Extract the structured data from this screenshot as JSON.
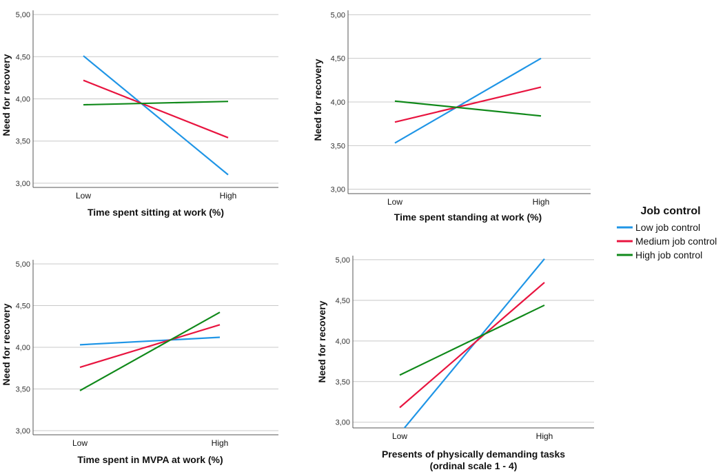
{
  "legend": {
    "title": "Job control",
    "entries": [
      {
        "name": "Low job control",
        "color": "#1f95e6"
      },
      {
        "name": "Medium job control",
        "color": "#e8143f"
      },
      {
        "name": "High job control",
        "color": "#10891a"
      }
    ]
  },
  "chart_data": [
    {
      "type": "line",
      "title": "",
      "xlabel": "Time spent sitting at work (%)",
      "ylabel": "Need for recovery",
      "categories": [
        "Low",
        "High"
      ],
      "ylim": [
        2.95,
        5.05
      ],
      "yticks": [
        3.0,
        3.5,
        4.0,
        4.5,
        5.0
      ],
      "ytick_labels": [
        "3,00",
        "3,50",
        "4,00",
        "4,50",
        "5,00"
      ],
      "series": [
        {
          "name": "Low job control",
          "values": [
            4.51,
            3.1
          ]
        },
        {
          "name": "Medium job control",
          "values": [
            4.22,
            3.54
          ]
        },
        {
          "name": "High job control",
          "values": [
            3.93,
            3.97
          ]
        }
      ]
    },
    {
      "type": "line",
      "title": "",
      "xlabel": "Time spent standing at work (%)",
      "ylabel": "Need for recovery",
      "categories": [
        "Low",
        "High"
      ],
      "ylim": [
        2.95,
        5.05
      ],
      "yticks": [
        3.0,
        3.5,
        4.0,
        4.5,
        5.0
      ],
      "ytick_labels": [
        "3,00",
        "3,50",
        "4,00",
        "4,50",
        "5,00"
      ],
      "series": [
        {
          "name": "Low job control",
          "values": [
            3.53,
            4.5
          ]
        },
        {
          "name": "Medium job control",
          "values": [
            3.77,
            4.17
          ]
        },
        {
          "name": "High job control",
          "values": [
            4.01,
            3.84
          ]
        }
      ]
    },
    {
      "type": "line",
      "title": "",
      "xlabel": "Time spent in MVPA at work (%)",
      "ylabel": "Need for recovery",
      "categories": [
        "Low",
        "High"
      ],
      "ylim": [
        2.95,
        5.05
      ],
      "yticks": [
        3.0,
        3.5,
        4.0,
        4.5,
        5.0
      ],
      "ytick_labels": [
        "3,00",
        "3,50",
        "4,00",
        "4,50",
        "5,00"
      ],
      "series": [
        {
          "name": "Low job control",
          "values": [
            4.03,
            4.12
          ]
        },
        {
          "name": "Medium job control",
          "values": [
            3.76,
            4.27
          ]
        },
        {
          "name": "High job control",
          "values": [
            3.48,
            4.42
          ]
        }
      ]
    },
    {
      "type": "line",
      "title": "",
      "xlabel": "Presents of physically demanding tasks",
      "xlabel_line2": "(ordinal scale 1 - 4)",
      "ylabel": "Need for recovery",
      "categories": [
        "Low",
        "High"
      ],
      "ylim": [
        2.93,
        5.05
      ],
      "yticks": [
        3.0,
        3.5,
        4.0,
        4.5,
        5.0
      ],
      "ytick_labels": [
        "3,00",
        "3,50",
        "4,00",
        "4,50",
        "5,00"
      ],
      "series": [
        {
          "name": "Low job control",
          "values": [
            2.86,
            5.01
          ]
        },
        {
          "name": "Medium job control",
          "values": [
            3.18,
            4.72
          ]
        },
        {
          "name": "High job control",
          "values": [
            3.58,
            4.44
          ]
        }
      ]
    }
  ]
}
